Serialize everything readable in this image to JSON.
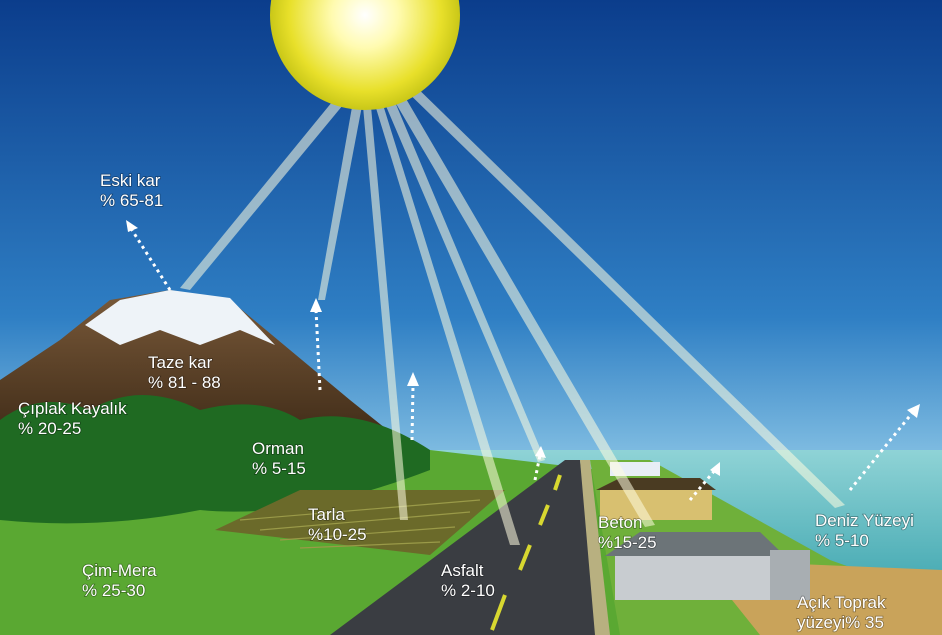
{
  "labels": [
    {
      "name": "Eski kar",
      "value": "% 65-81"
    },
    {
      "name": "Taze kar",
      "value": "% 81 - 88"
    },
    {
      "name": "Çıplak Kayalık",
      "value": "% 20-25"
    },
    {
      "name": "Orman",
      "value": "% 5-15"
    },
    {
      "name": "Tarla",
      "value": "%10-25"
    },
    {
      "name": "Çim-Mera",
      "value": "% 25-30"
    },
    {
      "name": "Asfalt",
      "value": "% 2-10"
    },
    {
      "name": "Beton",
      "value": "%15-25"
    },
    {
      "name": "Deniz Yüzeyi",
      "value": "% 5-10"
    },
    {
      "name": "Açık Toprak",
      "value": "yüzeyi% 35"
    }
  ]
}
